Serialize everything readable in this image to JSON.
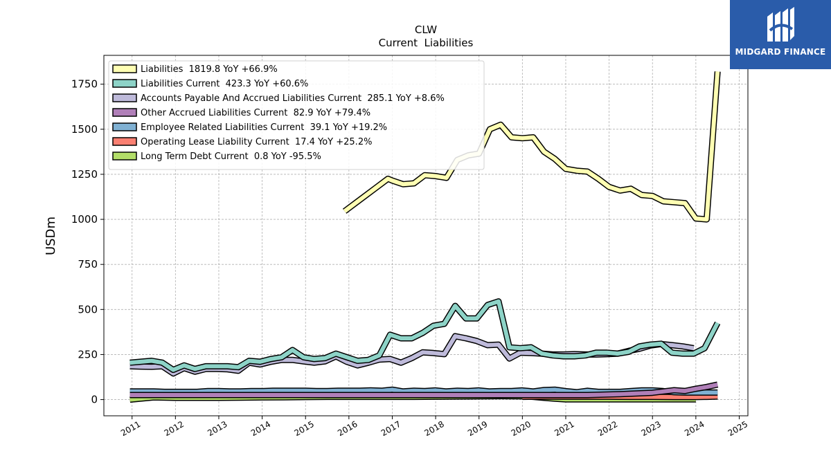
{
  "brand": {
    "logo_text": "MIDGARD FINANCE",
    "logo_color": "#2a5caa"
  },
  "chart_data": {
    "type": "area",
    "title": "CLW",
    "subtitle": "Current  Liabilities",
    "ylabel": "USDm",
    "xlabel": "",
    "xlim": [
      2010.35,
      2025.2
    ],
    "ylim": [
      -90,
      1910
    ],
    "yticks": [
      0,
      250,
      500,
      750,
      1000,
      1250,
      1500,
      1750
    ],
    "xticks": [
      "2011",
      "2012",
      "2013",
      "2014",
      "2015",
      "2016",
      "2017",
      "2018",
      "2019",
      "2020",
      "2021",
      "2022",
      "2023",
      "2024",
      "2025"
    ],
    "grid": true,
    "legend_position": "top-left",
    "series": [
      {
        "name": "Liabilities  1819.8 YoY +66.9%",
        "color": "#ffffb3",
        "x": [
          2015.9,
          2016.15,
          2016.4,
          2016.65,
          2016.9,
          2017.0,
          2017.25,
          2017.5,
          2017.75,
          2018.0,
          2018.25,
          2018.5,
          2018.75,
          2019.0,
          2019.25,
          2019.5,
          2019.75,
          2020.0,
          2020.25,
          2020.5,
          2020.75,
          2021.0,
          2021.25,
          2021.5,
          2021.75,
          2022.0,
          2022.25,
          2022.5,
          2022.75,
          2023.0,
          2023.25,
          2023.5,
          2023.75,
          2024.0,
          2024.25,
          2024.5
        ],
        "y": [
          1045,
          1090,
          1135,
          1180,
          1225,
          1215,
          1195,
          1200,
          1245,
          1240,
          1230,
          1330,
          1355,
          1365,
          1500,
          1525,
          1455,
          1450,
          1455,
          1375,
          1335,
          1280,
          1270,
          1265,
          1225,
          1180,
          1160,
          1170,
          1135,
          1130,
          1100,
          1095,
          1090,
          1005,
          1000,
          1820
        ]
      },
      {
        "name": "Liabilities Current  423.3 YoY +60.6%",
        "color": "#8dd3c7",
        "x": [
          2010.95,
          2011.2,
          2011.45,
          2011.7,
          2011.95,
          2012.2,
          2012.45,
          2012.7,
          2012.95,
          2013.2,
          2013.45,
          2013.7,
          2013.95,
          2014.2,
          2014.45,
          2014.7,
          2014.95,
          2015.2,
          2015.45,
          2015.7,
          2015.95,
          2016.2,
          2016.45,
          2016.7,
          2016.95,
          2017.2,
          2017.45,
          2017.7,
          2017.95,
          2018.2,
          2018.45,
          2018.7,
          2018.95,
          2019.2,
          2019.45,
          2019.7,
          2019.95,
          2020.2,
          2020.45,
          2020.7,
          2020.95,
          2021.2,
          2021.45,
          2021.7,
          2021.95,
          2022.2,
          2022.45,
          2022.7,
          2022.95,
          2023.2,
          2023.45,
          2023.7,
          2023.95,
          2024.2,
          2024.5
        ],
        "y": [
          205,
          210,
          215,
          205,
          165,
          190,
          170,
          185,
          185,
          185,
          180,
          215,
          210,
          225,
          235,
          275,
          235,
          225,
          230,
          255,
          235,
          215,
          220,
          245,
          360,
          340,
          340,
          370,
          410,
          420,
          520,
          450,
          450,
          525,
          545,
          290,
          285,
          290,
          255,
          245,
          240,
          240,
          245,
          260,
          260,
          255,
          265,
          295,
          305,
          310,
          260,
          255,
          255,
          285,
          425
        ]
      },
      {
        "name": "Accounts Payable And Accrued Liabilities Current  285.1 YoY +8.6%",
        "color": "#bebada",
        "x": [
          2010.95,
          2011.2,
          2011.45,
          2011.7,
          2011.95,
          2012.2,
          2012.45,
          2012.7,
          2012.95,
          2013.2,
          2013.45,
          2013.7,
          2013.95,
          2014.2,
          2014.45,
          2014.7,
          2014.95,
          2015.2,
          2015.45,
          2015.7,
          2015.95,
          2016.2,
          2016.45,
          2016.7,
          2016.95,
          2017.2,
          2017.45,
          2017.7,
          2017.95,
          2018.2,
          2018.45,
          2018.7,
          2018.95,
          2019.2,
          2019.45,
          2019.7,
          2019.95,
          2020.2,
          2020.45,
          2020.7,
          2020.95,
          2021.2,
          2021.45,
          2021.7,
          2021.95,
          2022.2,
          2022.45,
          2022.7,
          2022.95,
          2023.2,
          2023.45,
          2023.7,
          2023.95
        ],
        "y": [
          185,
          183,
          182,
          185,
          145,
          175,
          155,
          170,
          170,
          168,
          160,
          205,
          195,
          210,
          220,
          220,
          212,
          205,
          212,
          240,
          210,
          190,
          205,
          222,
          225,
          205,
          230,
          262,
          258,
          252,
          352,
          340,
          325,
          302,
          305,
          228,
          260,
          258,
          255,
          250,
          250,
          252,
          250,
          250,
          252,
          255,
          270,
          282,
          300,
          308,
          302,
          295,
          285
        ]
      },
      {
        "name": "Other Accrued Liabilities Current  82.9 YoY +79.4%",
        "color": "#b07fb8",
        "x": [
          2010.95,
          2012.0,
          2013.0,
          2014.0,
          2015.0,
          2016.0,
          2017.0,
          2018.0,
          2019.0,
          2020.0,
          2020.75,
          2021.5,
          2022.25,
          2022.75,
          2023.0,
          2023.25,
          2023.5,
          2023.75,
          2024.0,
          2024.25,
          2024.5
        ],
        "y": [
          25,
          25,
          25,
          25,
          25,
          25,
          25,
          25,
          25,
          25,
          25,
          25,
          30,
          35,
          38,
          45,
          52,
          48,
          60,
          70,
          83
        ]
      },
      {
        "name": "Employee Related Liabilities Current  39.1 YoY +19.2%",
        "color": "#80b1d3",
        "x": [
          2010.95,
          2011.25,
          2011.5,
          2011.75,
          2012.0,
          2012.25,
          2012.5,
          2012.75,
          2013.0,
          2013.25,
          2013.5,
          2013.75,
          2014.0,
          2014.25,
          2014.5,
          2014.75,
          2015.0,
          2015.25,
          2015.5,
          2015.75,
          2016.0,
          2016.25,
          2016.5,
          2016.75,
          2017.0,
          2017.25,
          2017.5,
          2017.75,
          2018.0,
          2018.25,
          2018.5,
          2018.75,
          2019.0,
          2019.25,
          2019.5,
          2019.75,
          2020.0,
          2020.25,
          2020.5,
          2020.75,
          2021.0,
          2021.25,
          2021.5,
          2021.75,
          2022.0,
          2022.25,
          2022.5,
          2022.75,
          2023.0,
          2023.25,
          2023.5,
          2023.75,
          2024.0,
          2024.25,
          2024.5
        ],
        "y": [
          45,
          45,
          45,
          43,
          43,
          43,
          43,
          47,
          47,
          45,
          45,
          47,
          47,
          49,
          49,
          49,
          49,
          47,
          47,
          49,
          49,
          49,
          51,
          49,
          55,
          45,
          49,
          47,
          51,
          45,
          49,
          47,
          51,
          45,
          47,
          47,
          51,
          45,
          53,
          55,
          47,
          41,
          49,
          43,
          43,
          43,
          47,
          51,
          51,
          47,
          41,
          39,
          39,
          39,
          39
        ]
      },
      {
        "name": "Operating Lease Liability Current  17.4 YoY +25.2%",
        "color": "#fb8072",
        "x": [
          2020.0,
          2020.5,
          2021.0,
          2021.5,
          2022.0,
          2022.5,
          2023.0,
          2023.5,
          2024.0,
          2024.25,
          2024.5
        ],
        "y": [
          15,
          16,
          16,
          16,
          16,
          15,
          15,
          14,
          14,
          15,
          17
        ]
      },
      {
        "name": "Long Term Debt Current  0.8 YoY -95.5%",
        "color": "#b3de69",
        "x": [
          2010.95,
          2011.5,
          2012.0,
          2012.5,
          2013.0,
          2013.5,
          2014.0,
          2014.5,
          2015.0,
          2015.5,
          2016.0,
          2016.5,
          2017.0,
          2017.5,
          2018.0,
          2018.5,
          2019.0,
          2019.5,
          2020.0,
          2020.25,
          2020.5,
          2020.75,
          2021.0,
          2021.5,
          2022.0,
          2022.5,
          2023.0,
          2023.5,
          2024.0
        ],
        "y": [
          0,
          12,
          10,
          10,
          10,
          11,
          12,
          13,
          14,
          15,
          15,
          15,
          15,
          15,
          16,
          17,
          18,
          19,
          18,
          15,
          10,
          5,
          1,
          1,
          1,
          1,
          1,
          1,
          1
        ]
      }
    ]
  }
}
